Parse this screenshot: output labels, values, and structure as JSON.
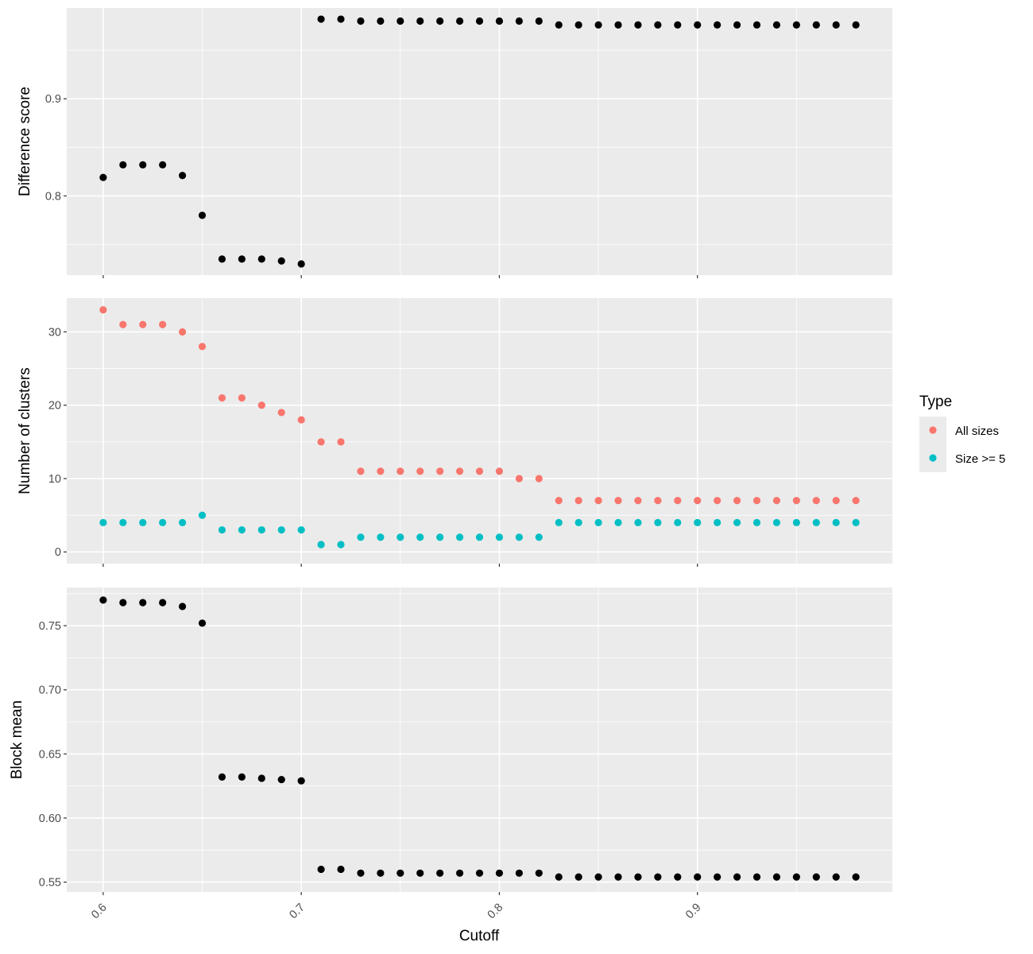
{
  "chart_data": {
    "type": "scatter",
    "xlabel": "Cutoff",
    "x_ticks": [
      0.6,
      0.7,
      0.8,
      0.9
    ],
    "x_tick_labels": [
      "0.6",
      "0.7",
      "0.8",
      "0.9"
    ],
    "xlim": [
      0.5816,
      0.9984
    ],
    "legend": {
      "title": "Type",
      "placement": "right",
      "entries": [
        {
          "label": "All sizes",
          "color": "#F8766D"
        },
        {
          "label": "Size >= 5",
          "color": "#00BFC4"
        }
      ]
    },
    "x": [
      0.6,
      0.61,
      0.62,
      0.63,
      0.64,
      0.65,
      0.66,
      0.67,
      0.68,
      0.69,
      0.7,
      0.71,
      0.72,
      0.73,
      0.74,
      0.75,
      0.76,
      0.77,
      0.78,
      0.79,
      0.8,
      0.81,
      0.82,
      0.83,
      0.84,
      0.85,
      0.86,
      0.87,
      0.88,
      0.89,
      0.9,
      0.91,
      0.92,
      0.93,
      0.94,
      0.95,
      0.96,
      0.97,
      0.98
    ],
    "panels": [
      {
        "ylabel": "Difference score",
        "y_ticks": [
          0.8,
          0.9
        ],
        "y_tick_labels": [
          "0.8",
          "0.9"
        ],
        "ylim": [
          0.7185,
          0.9935
        ],
        "grid": true,
        "series": [
          {
            "color": "#000000",
            "values": [
              0.819,
              0.832,
              0.832,
              0.832,
              0.821,
              0.78,
              0.735,
              0.735,
              0.735,
              0.733,
              0.73,
              0.982,
              0.982,
              0.98,
              0.98,
              0.98,
              0.98,
              0.98,
              0.98,
              0.98,
              0.98,
              0.98,
              0.98,
              0.976,
              0.976,
              0.976,
              0.976,
              0.976,
              0.976,
              0.976,
              0.976,
              0.976,
              0.976,
              0.976,
              0.976,
              0.976,
              0.976,
              0.976,
              0.976
            ]
          }
        ]
      },
      {
        "ylabel": "Number of clusters",
        "y_ticks": [
          0,
          10,
          20,
          30
        ],
        "y_tick_labels": [
          "0",
          "10",
          "20",
          "30"
        ],
        "ylim": [
          -1.6,
          34.6
        ],
        "grid": true,
        "series": [
          {
            "name": "All sizes",
            "color": "#F8766D",
            "values": [
              33,
              31,
              31,
              31,
              30,
              28,
              21,
              21,
              20,
              19,
              18,
              15,
              15,
              11,
              11,
              11,
              11,
              11,
              11,
              11,
              11,
              10,
              10,
              7,
              7,
              7,
              7,
              7,
              7,
              7,
              7,
              7,
              7,
              7,
              7,
              7,
              7,
              7,
              7
            ]
          },
          {
            "name": "Size >= 5",
            "color": "#00BFC4",
            "values": [
              4,
              4,
              4,
              4,
              4,
              5,
              3,
              3,
              3,
              3,
              3,
              1,
              1,
              2,
              2,
              2,
              2,
              2,
              2,
              2,
              2,
              2,
              2,
              4,
              4,
              4,
              4,
              4,
              4,
              4,
              4,
              4,
              4,
              4,
              4,
              4,
              4,
              4,
              4
            ]
          }
        ]
      },
      {
        "ylabel": "Block mean",
        "y_ticks": [
          0.55,
          0.6,
          0.65,
          0.7,
          0.75
        ],
        "y_tick_labels": [
          "0.55",
          "0.60",
          "0.65",
          "0.70",
          "0.75"
        ],
        "ylim": [
          0.5423,
          0.7798
        ],
        "grid": true,
        "series": [
          {
            "color": "#000000",
            "values": [
              0.77,
              0.768,
              0.768,
              0.768,
              0.765,
              0.752,
              0.632,
              0.632,
              0.631,
              0.63,
              0.629,
              0.56,
              0.56,
              0.557,
              0.557,
              0.557,
              0.557,
              0.557,
              0.557,
              0.557,
              0.557,
              0.557,
              0.557,
              0.554,
              0.554,
              0.554,
              0.554,
              0.554,
              0.554,
              0.554,
              0.554,
              0.554,
              0.554,
              0.554,
              0.554,
              0.554,
              0.554,
              0.554,
              0.554
            ]
          }
        ]
      }
    ]
  }
}
